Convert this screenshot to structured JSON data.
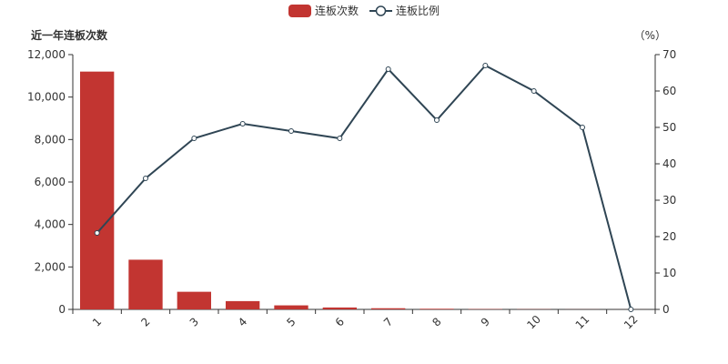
{
  "chart_data": {
    "type": "bar",
    "categories": [
      "1",
      "2",
      "3",
      "4",
      "5",
      "6",
      "7",
      "8",
      "9",
      "10",
      "11",
      "12"
    ],
    "series": [
      {
        "name": "连板次数",
        "type": "bar",
        "axis": "left",
        "values": [
          11200,
          2340,
          830,
          390,
          190,
          90,
          55,
          30,
          15,
          9,
          4,
          1
        ]
      },
      {
        "name": "连板比例",
        "type": "line",
        "axis": "right",
        "values": [
          21,
          36,
          47,
          51,
          49,
          47,
          66,
          52,
          67,
          60,
          50,
          0
        ]
      }
    ],
    "ylabel": "近一年连板次数",
    "y2label": "（%）",
    "ylim": [
      0,
      12000
    ],
    "y2lim": [
      0,
      70
    ],
    "y_ticks": [
      "0",
      "2,000",
      "4,000",
      "6,000",
      "8,000",
      "10,000",
      "12,000"
    ],
    "y2_ticks": [
      "0",
      "10",
      "20",
      "30",
      "40",
      "50",
      "60",
      "70"
    ],
    "legend_position": "top-center",
    "grid": false,
    "colors": {
      "bar": "#c23531",
      "line": "#2f4554"
    }
  }
}
